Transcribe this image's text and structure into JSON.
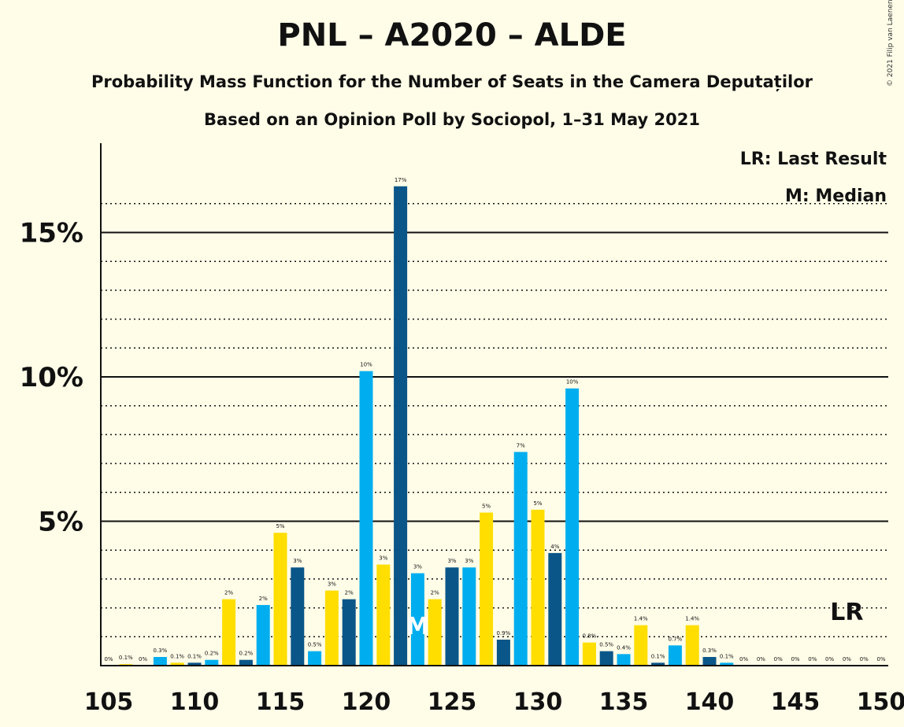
{
  "title": "PNL – A2020 – ALDE",
  "subtitle1": "Probability Mass Function for the Number of Seats in the Camera Deputaților",
  "subtitle2": "Based on an Opinion Poll by Sociopol, 1–31 May 2021",
  "copyright": "© 2021 Filip van Laenen",
  "legend": {
    "last_result": "LR: Last Result",
    "median": "M: Median"
  },
  "chart_data": {
    "type": "bar",
    "x": [
      105,
      106,
      107,
      108,
      109,
      110,
      111,
      112,
      113,
      114,
      115,
      116,
      117,
      118,
      119,
      120,
      121,
      122,
      123,
      124,
      125,
      126,
      127,
      128,
      129,
      130,
      131,
      132,
      133,
      134,
      135,
      136,
      137,
      138,
      139,
      140,
      141,
      142,
      143,
      144,
      145,
      146,
      147,
      148,
      149,
      150
    ],
    "values": [
      0,
      0.05,
      0,
      0.3,
      0.1,
      0.1,
      0.2,
      2.3,
      0.2,
      2.1,
      4.6,
      3.4,
      0.5,
      2.6,
      2.3,
      10.2,
      3.5,
      16.6,
      3.2,
      2.3,
      3.4,
      3.4,
      5.3,
      0.9,
      7.4,
      5.4,
      3.9,
      9.6,
      0.8,
      0.5,
      0.4,
      1.4,
      0.1,
      0.7,
      1.4,
      0.3,
      0.1,
      0,
      0,
      0,
      0,
      0,
      0,
      0,
      0,
      0
    ],
    "labels": [
      "0%",
      "0.1%",
      "0%",
      "0.3%",
      "0.1%",
      "0.1%",
      "0.2%",
      "2%",
      "0.2%",
      "2%",
      "5%",
      "3%",
      "0.5%",
      "3%",
      "2%",
      "10%",
      "3%",
      "17%",
      "3%",
      "2%",
      "3%",
      "3%",
      "5%",
      "0.9%",
      "7%",
      "5%",
      "4%",
      "10%",
      "0.8%",
      "0.5%",
      "0.4%",
      "1.4%",
      "0.1%",
      "0.7%",
      "1.4%",
      "0.3%",
      "0.1%",
      "0%",
      "0%",
      "0%",
      "0%",
      "0%",
      "0%",
      "0%",
      "0%",
      "0%"
    ],
    "colors": [
      "#0A5689",
      "#00AEEF",
      "#FFDE00"
    ],
    "xticks": [
      105,
      110,
      115,
      120,
      125,
      130,
      135,
      140,
      145,
      150
    ],
    "xtick_labels": [
      "105",
      "110",
      "115",
      "120",
      "125",
      "130",
      "135",
      "140",
      "145",
      "150"
    ],
    "yticks": [
      5,
      10,
      15
    ],
    "ytick_labels": [
      "5%",
      "10%",
      "15%"
    ],
    "ylim": [
      0,
      17.5
    ],
    "median_seat": 123,
    "median_marker": "M",
    "last_result_seat": 148,
    "last_result_marker": "LR",
    "grid": "dotted every 1%, solid every 5%"
  }
}
